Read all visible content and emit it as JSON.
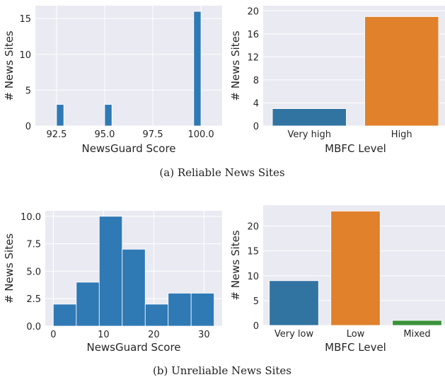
{
  "captions": {
    "top": "(a)  Reliable News Sites",
    "bottom": "(b)  Unreliable News Sites"
  },
  "colors": {
    "plot_bg": "#eaeaf2",
    "grid": "#ffffff",
    "hist": "#2f79b5",
    "blue": "#3274a1",
    "orange": "#e1812c",
    "green": "#3a923a"
  },
  "chart_data": [
    {
      "id": "a1",
      "type": "bar",
      "subtype": "histogram",
      "title": "",
      "xlabel": "NewsGuard Score",
      "ylabel": "# News Sites",
      "xlim": [
        91.4,
        101.1
      ],
      "ylim": [
        0,
        16.8
      ],
      "xticks": [
        92.5,
        95.0,
        97.5,
        100.0
      ],
      "xtick_labels": [
        "92.5",
        "95.0",
        "97.5",
        "100.0"
      ],
      "yticks": [
        0,
        5,
        10,
        15
      ],
      "ytick_labels": [
        "0",
        "5",
        "10",
        "15"
      ],
      "bins": [
        {
          "x0": 92.5,
          "x1": 92.875,
          "value": 3
        },
        {
          "x0": 95.0,
          "x1": 95.375,
          "value": 3
        },
        {
          "x0": 99.625,
          "x1": 100.0,
          "value": 16
        }
      ],
      "color": "#2f79b5",
      "grid": true
    },
    {
      "id": "a2",
      "type": "bar",
      "title": "",
      "xlabel": "MBFC Level",
      "ylabel": "# News Sites",
      "categories": [
        "Very high",
        "High"
      ],
      "values": [
        3,
        19
      ],
      "colors": [
        "#3274a1",
        "#e1812c"
      ],
      "ylim": [
        0,
        20.9
      ],
      "yticks": [
        0,
        4,
        8,
        12,
        16,
        20
      ],
      "ytick_labels": [
        "0",
        "4",
        "8",
        "12",
        "16",
        "20"
      ],
      "grid": true
    },
    {
      "id": "b1",
      "type": "bar",
      "subtype": "histogram",
      "title": "",
      "xlabel": "NewsGuard Score",
      "ylabel": "# News Sites",
      "xlim": [
        -1.6,
        33.6
      ],
      "ylim": [
        0,
        10.5
      ],
      "xticks": [
        0,
        10,
        20,
        30
      ],
      "xtick_labels": [
        "0",
        "10",
        "20",
        "30"
      ],
      "yticks": [
        0,
        2.5,
        5.0,
        7.5,
        10.0
      ],
      "ytick_labels": [
        "0.0",
        "2.5",
        "5.0",
        "7.5",
        "10.0"
      ],
      "bins": [
        {
          "x0": 0,
          "x1": 4.57,
          "value": 2
        },
        {
          "x0": 4.57,
          "x1": 9.14,
          "value": 4
        },
        {
          "x0": 9.14,
          "x1": 13.71,
          "value": 10
        },
        {
          "x0": 13.71,
          "x1": 18.29,
          "value": 7
        },
        {
          "x0": 18.29,
          "x1": 22.86,
          "value": 2
        },
        {
          "x0": 22.86,
          "x1": 27.43,
          "value": 3
        },
        {
          "x0": 27.43,
          "x1": 32.0,
          "value": 3
        }
      ],
      "color": "#2f79b5",
      "grid": true
    },
    {
      "id": "b2",
      "type": "bar",
      "title": "",
      "xlabel": "MBFC Level",
      "ylabel": "# News Sites",
      "categories": [
        "Very low",
        "Low",
        "Mixed"
      ],
      "values": [
        9,
        23,
        1
      ],
      "colors": [
        "#3274a1",
        "#e1812c",
        "#3a923a"
      ],
      "ylim": [
        0,
        24.2
      ],
      "yticks": [
        0,
        5,
        10,
        15,
        20
      ],
      "ytick_labels": [
        "0",
        "5",
        "10",
        "15",
        "20"
      ],
      "grid": true
    }
  ]
}
